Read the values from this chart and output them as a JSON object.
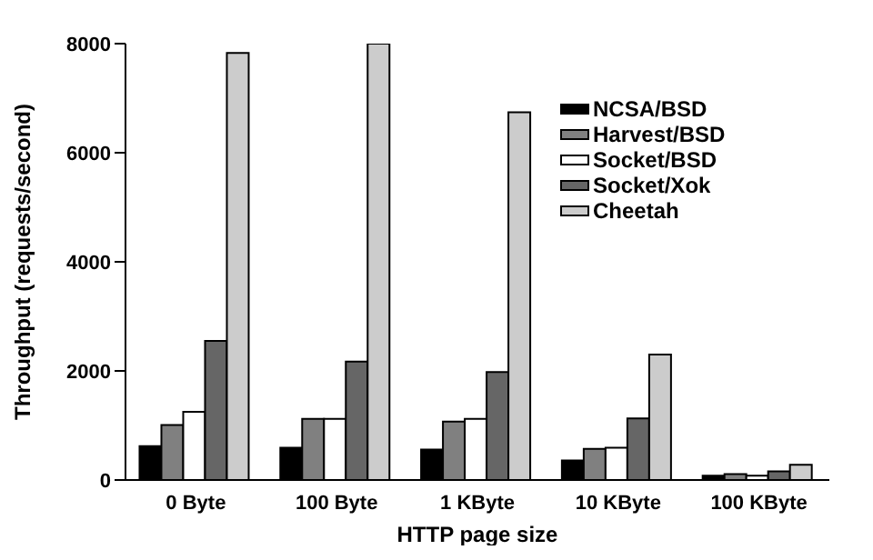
{
  "chart_data": {
    "type": "bar",
    "xlabel": "HTTP page size",
    "ylabel": "Throughput (requests/second)",
    "categories": [
      "0 Byte",
      "100 Byte",
      "1 KByte",
      "10 KByte",
      "100 KByte"
    ],
    "series": [
      {
        "name": "NCSA/BSD",
        "color": "#000000",
        "values": [
          620,
          590,
          560,
          360,
          80
        ]
      },
      {
        "name": "Harvest/BSD",
        "color": "#808080",
        "values": [
          1010,
          1120,
          1070,
          570,
          110
        ]
      },
      {
        "name": "Socket/BSD",
        "color": "#ffffff",
        "values": [
          1250,
          1120,
          1120,
          590,
          80
        ]
      },
      {
        "name": "Socket/Xok",
        "color": "#666666",
        "values": [
          2550,
          2170,
          1980,
          1130,
          160
        ]
      },
      {
        "name": "Cheetah",
        "color": "#cccccc",
        "values": [
          7830,
          8000,
          6740,
          2300,
          280
        ]
      }
    ],
    "ylim": [
      0,
      8000
    ],
    "yticks": [
      0,
      2000,
      4000,
      6000,
      8000
    ],
    "grid": false,
    "legend": "top right"
  }
}
